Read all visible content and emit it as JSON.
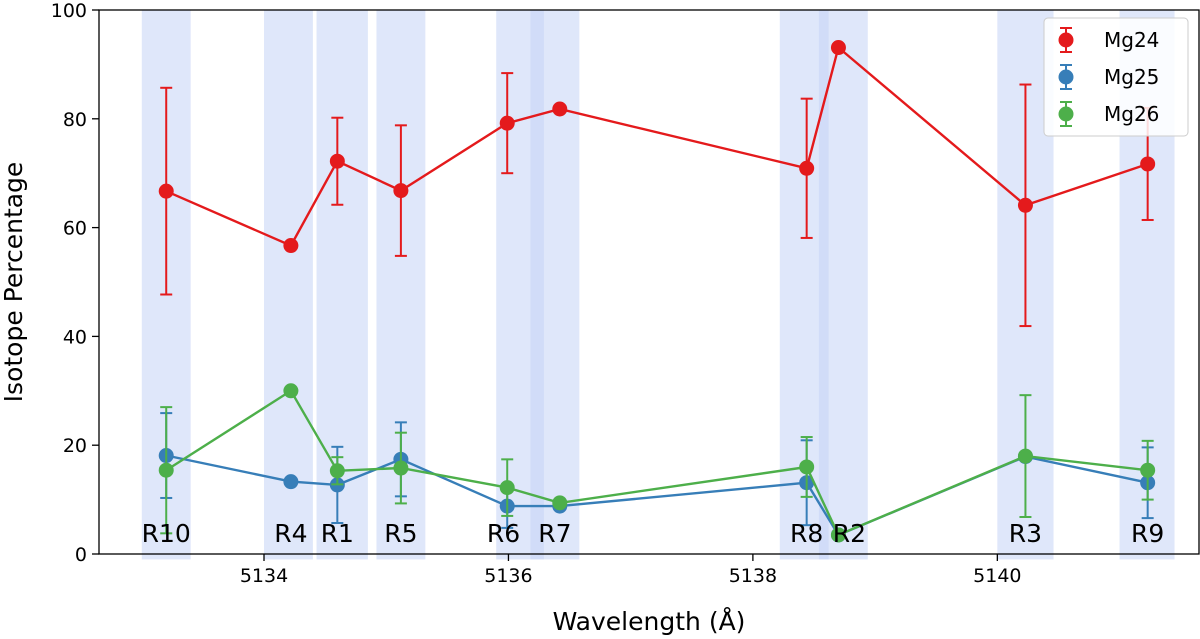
{
  "chart_data": {
    "type": "scatter",
    "title": "",
    "xlabel": "Wavelength (Å)",
    "ylabel": "Isotope Percentage",
    "xlim": [
      5132.65,
      5141.65
    ],
    "ylim": [
      0,
      100
    ],
    "x_ticks": [
      5134,
      5136,
      5138,
      5140
    ],
    "x_tick_labels": [
      "5134",
      "5136",
      "5138",
      "5140"
    ],
    "y_ticks": [
      0,
      20,
      40,
      60,
      80,
      100
    ],
    "y_tick_labels": [
      "0",
      "20",
      "40",
      "60",
      "80",
      "100"
    ],
    "grid": false,
    "legend_position": "top-right",
    "regions": [
      {
        "label": "R10",
        "x0": 5133.0,
        "x1": 5133.4,
        "label_x": 5133.2
      },
      {
        "label": "R4",
        "x0": 5134.0,
        "x1": 5134.4,
        "label_x": 5134.22
      },
      {
        "label": "R1",
        "x0": 5134.43,
        "x1": 5134.85,
        "label_x": 5134.6
      },
      {
        "label": "R5",
        "x0": 5134.92,
        "x1": 5135.32,
        "label_x": 5135.12
      },
      {
        "label": "R6",
        "x0": 5135.9,
        "x1": 5136.29,
        "label_x": 5135.96
      },
      {
        "label": "R7",
        "x0": 5136.18,
        "x1": 5136.58,
        "label_x": 5136.38
      },
      {
        "label": "R8",
        "x0": 5138.22,
        "x1": 5138.62,
        "label_x": 5138.44
      },
      {
        "label": "R2",
        "x0": 5138.54,
        "x1": 5138.94,
        "label_x": 5138.79
      },
      {
        "label": "R3",
        "x0": 5140.0,
        "x1": 5140.46,
        "label_x": 5140.23
      },
      {
        "label": "R9",
        "x0": 5141.0,
        "x1": 5141.45,
        "label_x": 5141.23
      }
    ],
    "series": [
      {
        "name": "Mg24",
        "color": "#e41a1c",
        "x": [
          5133.2,
          5134.22,
          5134.6,
          5135.12,
          5135.99,
          5136.42,
          5138.44,
          5138.7,
          5140.23,
          5141.23
        ],
        "y": [
          66.7,
          56.7,
          72.2,
          66.8,
          79.2,
          81.8,
          70.9,
          93.1,
          64.1,
          71.7
        ],
        "err": [
          19.0,
          0,
          8.0,
          12.0,
          9.2,
          0,
          12.8,
          0,
          22.2,
          10.3
        ]
      },
      {
        "name": "Mg25",
        "color": "#377eb8",
        "x": [
          5133.2,
          5134.22,
          5134.6,
          5135.12,
          5135.99,
          5136.42,
          5138.44,
          5138.7,
          5140.23,
          5141.23
        ],
        "y": [
          18.1,
          13.3,
          12.7,
          17.4,
          8.8,
          8.8,
          13.1,
          3.5,
          17.9,
          13.1
        ],
        "err": [
          7.8,
          0,
          7.0,
          6.8,
          4.0,
          0,
          7.8,
          0,
          0,
          6.5
        ]
      },
      {
        "name": "Mg26",
        "color": "#4daf4a",
        "x": [
          5133.2,
          5134.22,
          5134.6,
          5135.12,
          5135.99,
          5136.42,
          5138.44,
          5138.7,
          5140.23,
          5141.23
        ],
        "y": [
          15.4,
          30.0,
          15.3,
          15.8,
          12.2,
          9.4,
          16.0,
          3.5,
          18.0,
          15.4
        ],
        "err": [
          11.6,
          0,
          2.5,
          6.5,
          5.2,
          0,
          5.5,
          0,
          11.2,
          5.4
        ]
      }
    ]
  }
}
